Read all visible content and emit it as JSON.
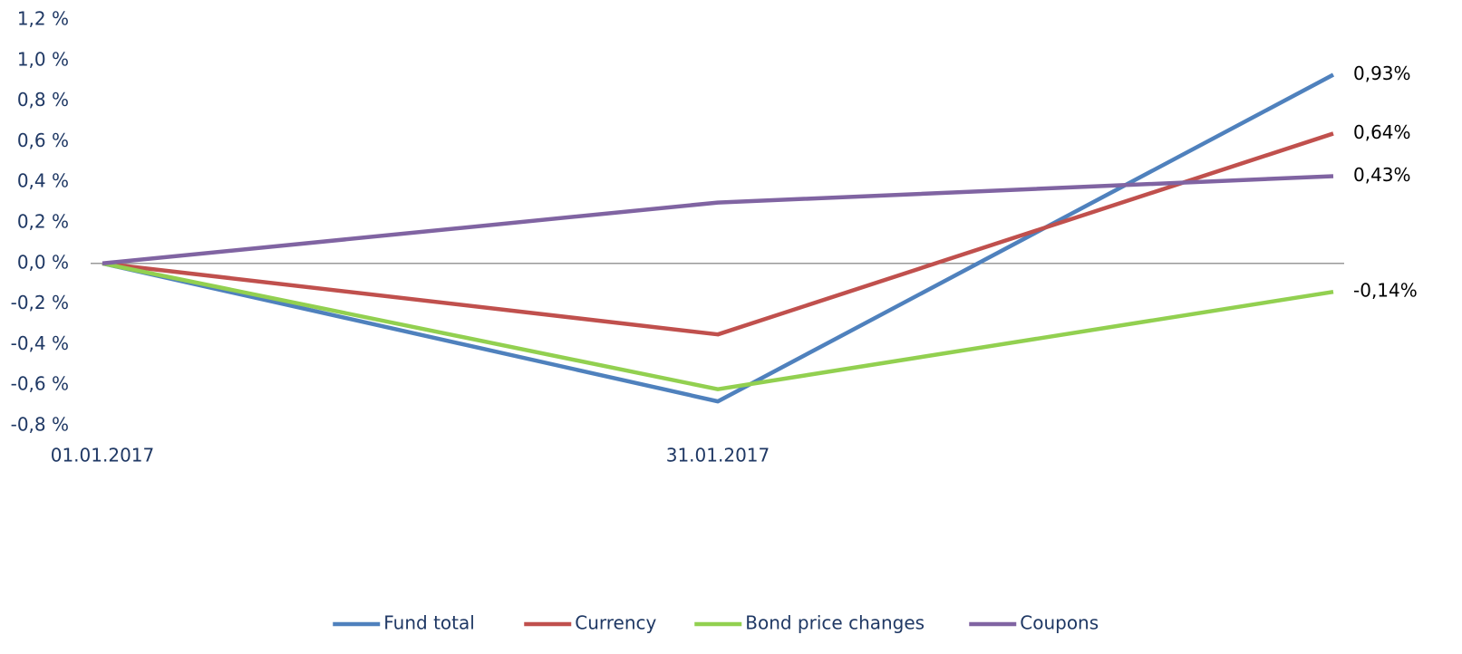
{
  "chart_data": {
    "type": "line",
    "categories": [
      "01.01.2017",
      "31.01.2017",
      null
    ],
    "series": [
      {
        "name": "Fund total",
        "color": "#4f81bd",
        "values": [
          0,
          -0.68,
          0.93
        ],
        "value_labels": [
          null,
          null,
          "0,93%"
        ]
      },
      {
        "name": "Currency",
        "color": "#c0504d",
        "values": [
          0,
          -0.35,
          0.64
        ],
        "value_labels": [
          null,
          null,
          "0,64%"
        ]
      },
      {
        "name": "Bond price changes",
        "color": "#92d050",
        "values": [
          0,
          -0.62,
          -0.14
        ],
        "value_labels": [
          null,
          null,
          "-0,14%"
        ]
      },
      {
        "name": "Coupons",
        "color": "#8064a2",
        "values": [
          0,
          0.3,
          0.43
        ],
        "value_labels": [
          null,
          null,
          "0,43%"
        ]
      }
    ],
    "ylim": [
      -0.8,
      1.2
    ],
    "yticks": [
      {
        "value": -0.8,
        "label": "-0,8 %"
      },
      {
        "value": -0.6,
        "label": "-0,6 %"
      },
      {
        "value": -0.4,
        "label": "-0,4 %"
      },
      {
        "value": -0.2,
        "label": "-0,2 %"
      },
      {
        "value": 0,
        "label": "0,0 %"
      },
      {
        "value": 0.2,
        "label": "0,2 %"
      },
      {
        "value": 0.4,
        "label": "0,4 %"
      },
      {
        "value": 0.6,
        "label": "0,6 %"
      },
      {
        "value": 0.8,
        "label": "0,8 %"
      },
      {
        "value": 1.0,
        "label": "1,0 %"
      },
      {
        "value": 1.2,
        "label": "1,2 %"
      }
    ],
    "grid": false,
    "legend": "bottom"
  }
}
